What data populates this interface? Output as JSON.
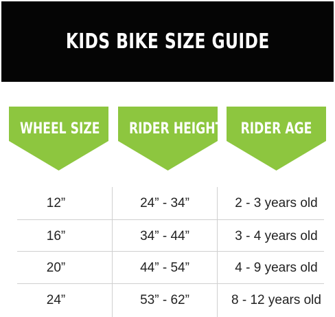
{
  "title": "KIDS BIKE SIZE GUIDE",
  "colors": {
    "banner_bg": "#050505",
    "accent_green": "#8dc63f",
    "text": "#222222",
    "divider": "#cfcfcf"
  },
  "headers": [
    "WHEEL SIZE",
    "RIDER HEIGHT",
    "RIDER AGE"
  ],
  "rows": [
    [
      "12”",
      "24” - 34”",
      "2 - 3 years old"
    ],
    [
      "16”",
      "34” - 44”",
      "3 - 4 years old"
    ],
    [
      "20”",
      "44” - 54”",
      "4 - 9 years old"
    ],
    [
      "24”",
      "53” - 62”",
      "8 - 12 years old"
    ]
  ]
}
